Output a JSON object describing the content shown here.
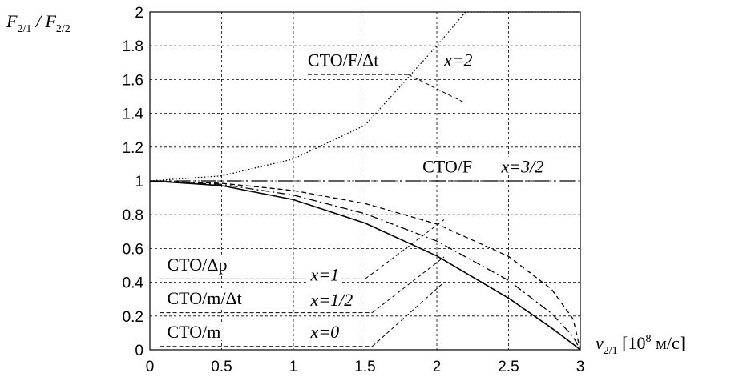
{
  "chart_data": {
    "type": "line",
    "ylabel": {
      "main": "F",
      "sub1": "2/1",
      "sep": " / F",
      "sub2": "2/2"
    },
    "xlabel": {
      "main": "v",
      "sub": "2/1",
      "text1": " [10",
      "sup": "8",
      "text2": " м/с]"
    },
    "xlim": [
      0,
      3
    ],
    "ylim": [
      0,
      2
    ],
    "xticks": [
      "0",
      "0.5",
      "1",
      "1.5",
      "2",
      "2.5",
      "3"
    ],
    "yticks": [
      "0",
      "0.2",
      "0.4",
      "0.6",
      "0.8",
      "1",
      "1.2",
      "1.4",
      "1.6",
      "1.8",
      "2"
    ],
    "grid": true,
    "c": 3,
    "series": [
      {
        "x_exponent": 2,
        "style": "dotted",
        "x": [
          0,
          0.5,
          1,
          1.5,
          2,
          2.2,
          2.5,
          2.6,
          2.7,
          2.8,
          2.9,
          3
        ],
        "y": [
          1,
          1.03,
          1.13,
          1.33,
          1.8,
          2.0,
          2.0,
          2.0,
          2.0,
          2.0,
          2.0,
          2.0
        ]
      },
      {
        "x_exponent": 1.5,
        "style": "dashdot-long",
        "x": [
          0,
          3
        ],
        "y": [
          1,
          1
        ]
      },
      {
        "x_exponent": 1,
        "style": "dashed",
        "x": [
          0,
          0.5,
          1,
          1.5,
          2,
          2.5,
          2.8,
          2.95,
          3
        ],
        "y": [
          1,
          0.986,
          0.943,
          0.866,
          0.745,
          0.553,
          0.359,
          0.182,
          0
        ]
      },
      {
        "x_exponent": 0.5,
        "style": "dashdot",
        "x": [
          0,
          0.5,
          1,
          1.5,
          2,
          2.5,
          2.8,
          2.95,
          3
        ],
        "y": [
          1,
          0.979,
          0.916,
          0.806,
          0.644,
          0.411,
          0.215,
          0.078,
          0
        ]
      },
      {
        "x_exponent": 0,
        "style": "solid",
        "x": [
          0,
          0.5,
          1,
          1.5,
          2,
          2.5,
          2.8,
          2.95,
          3
        ],
        "y": [
          1,
          0.972,
          0.889,
          0.75,
          0.556,
          0.306,
          0.129,
          0.033,
          0
        ]
      }
    ],
    "annotations": [
      {
        "id": "x2",
        "label": "СТО/F/Δt",
        "x_label": "x=2",
        "label_pos": [
          1.1,
          1.68
        ],
        "xlabel_pos": [
          2.05,
          1.68
        ],
        "underline": [
          1.1,
          1.63,
          1.8,
          1.63
        ],
        "leader": [
          1.8,
          1.63,
          2.2,
          1.46
        ]
      },
      {
        "id": "x15",
        "label": "СТО/F",
        "x_label": "x=3/2",
        "label_pos": [
          1.9,
          1.05
        ],
        "xlabel_pos": [
          2.45,
          1.05
        ],
        "underline": [
          1.9,
          1.0,
          2.8,
          1.0
        ],
        "leader": null
      },
      {
        "id": "x1",
        "label": "СТО/Δp",
        "x_label": "x=1",
        "label_pos": [
          0.12,
          0.47
        ],
        "xlabel_pos": [
          1.12,
          0.41
        ],
        "underline": [
          0.07,
          0.42,
          1.5,
          0.42
        ],
        "leader": [
          1.5,
          0.42,
          2.05,
          0.77
        ]
      },
      {
        "id": "x05",
        "label": "СТО/m/Δt",
        "x_label": "x=1/2",
        "label_pos": [
          0.12,
          0.27
        ],
        "xlabel_pos": [
          1.12,
          0.26
        ],
        "underline": [
          0.07,
          0.22,
          1.55,
          0.22
        ],
        "leader": [
          1.55,
          0.22,
          2.05,
          0.55
        ]
      },
      {
        "id": "x0",
        "label": "СТО/m",
        "x_label": "x=0",
        "label_pos": [
          0.12,
          0.07
        ],
        "xlabel_pos": [
          1.12,
          0.07
        ],
        "underline": [
          0.07,
          0.02,
          1.55,
          0.02
        ],
        "leader": [
          1.55,
          0.02,
          2.05,
          0.4
        ]
      }
    ]
  }
}
